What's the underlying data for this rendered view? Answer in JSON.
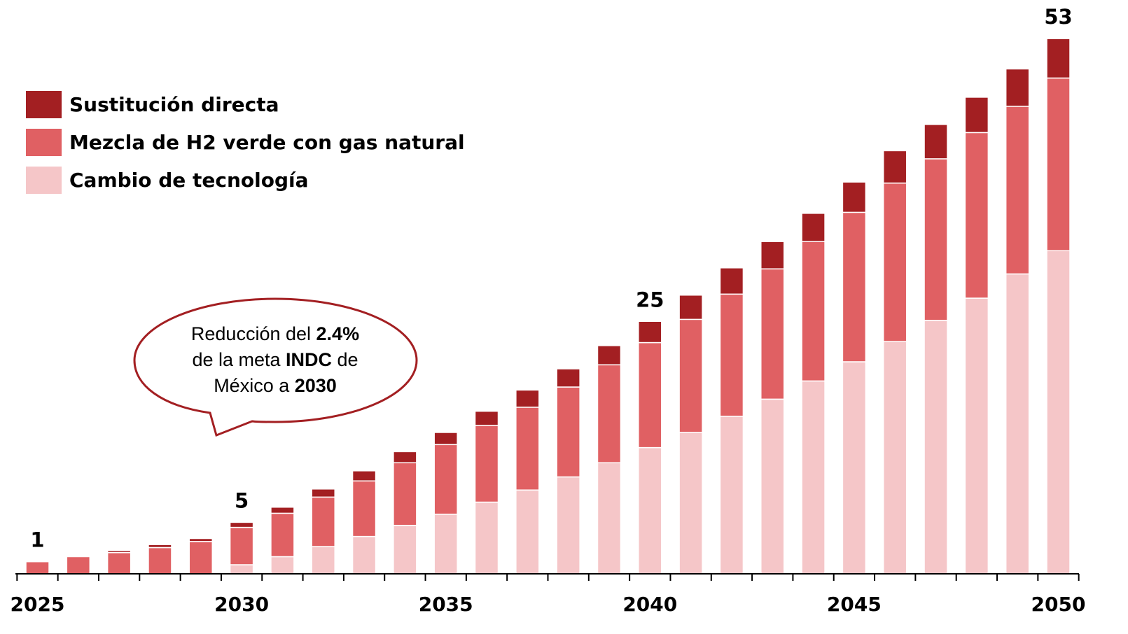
{
  "chart_data": {
    "type": "stacked_bar",
    "categories": [
      "2025",
      null,
      null,
      null,
      null,
      "2030",
      null,
      null,
      null,
      null,
      "2035",
      null,
      null,
      null,
      null,
      "2040",
      null,
      null,
      null,
      null,
      "2045",
      null,
      null,
      null,
      null,
      "2050"
    ],
    "series": [
      {
        "name": "Cambio de tecnología",
        "color": "#f5c6c8",
        "values": [
          0,
          0,
          0,
          0,
          0,
          0.9,
          1.7,
          2.7,
          3.7,
          4.8,
          5.9,
          7.1,
          8.3,
          9.6,
          11.0,
          12.5,
          14.0,
          15.6,
          17.3,
          19.1,
          21.0,
          23.0,
          25.1,
          27.3,
          29.7,
          32.0
        ]
      },
      {
        "name": "Mezcla de H2 verde con gas natural",
        "color": "#e06063",
        "values": [
          1.2,
          1.7,
          2.1,
          2.6,
          3.2,
          3.7,
          4.3,
          4.9,
          5.5,
          6.2,
          6.9,
          7.6,
          8.2,
          8.9,
          9.7,
          10.4,
          11.2,
          12.1,
          12.9,
          13.8,
          14.8,
          15.7,
          16.0,
          16.4,
          16.6,
          17.1
        ]
      },
      {
        "name": "Sustitución directa",
        "color": "#a31f22",
        "values": [
          0,
          0,
          0.2,
          0.3,
          0.3,
          0.5,
          0.6,
          0.8,
          1.0,
          1.1,
          1.2,
          1.4,
          1.7,
          1.8,
          1.9,
          2.1,
          2.4,
          2.6,
          2.7,
          2.8,
          3.0,
          3.2,
          3.4,
          3.5,
          3.7,
          3.9
        ]
      }
    ],
    "total_labels": [
      {
        "category": "2025",
        "value": 1
      },
      {
        "category": "2030",
        "value": 5
      },
      {
        "category": "2040",
        "value": 25
      },
      {
        "category": "2050",
        "value": 53
      }
    ],
    "ylim": [
      0,
      56
    ],
    "callout": [
      [
        {
          "text": "Reducción del ",
          "bold": false
        },
        {
          "text": "2.4%",
          "bold": true
        }
      ],
      [
        {
          "text": "de la meta ",
          "bold": false
        },
        {
          "text": "INDC",
          "bold": true
        },
        {
          "text": " de",
          "bold": false
        }
      ],
      [
        {
          "text": "México a ",
          "bold": false
        },
        {
          "text": "2030",
          "bold": true
        }
      ]
    ]
  }
}
